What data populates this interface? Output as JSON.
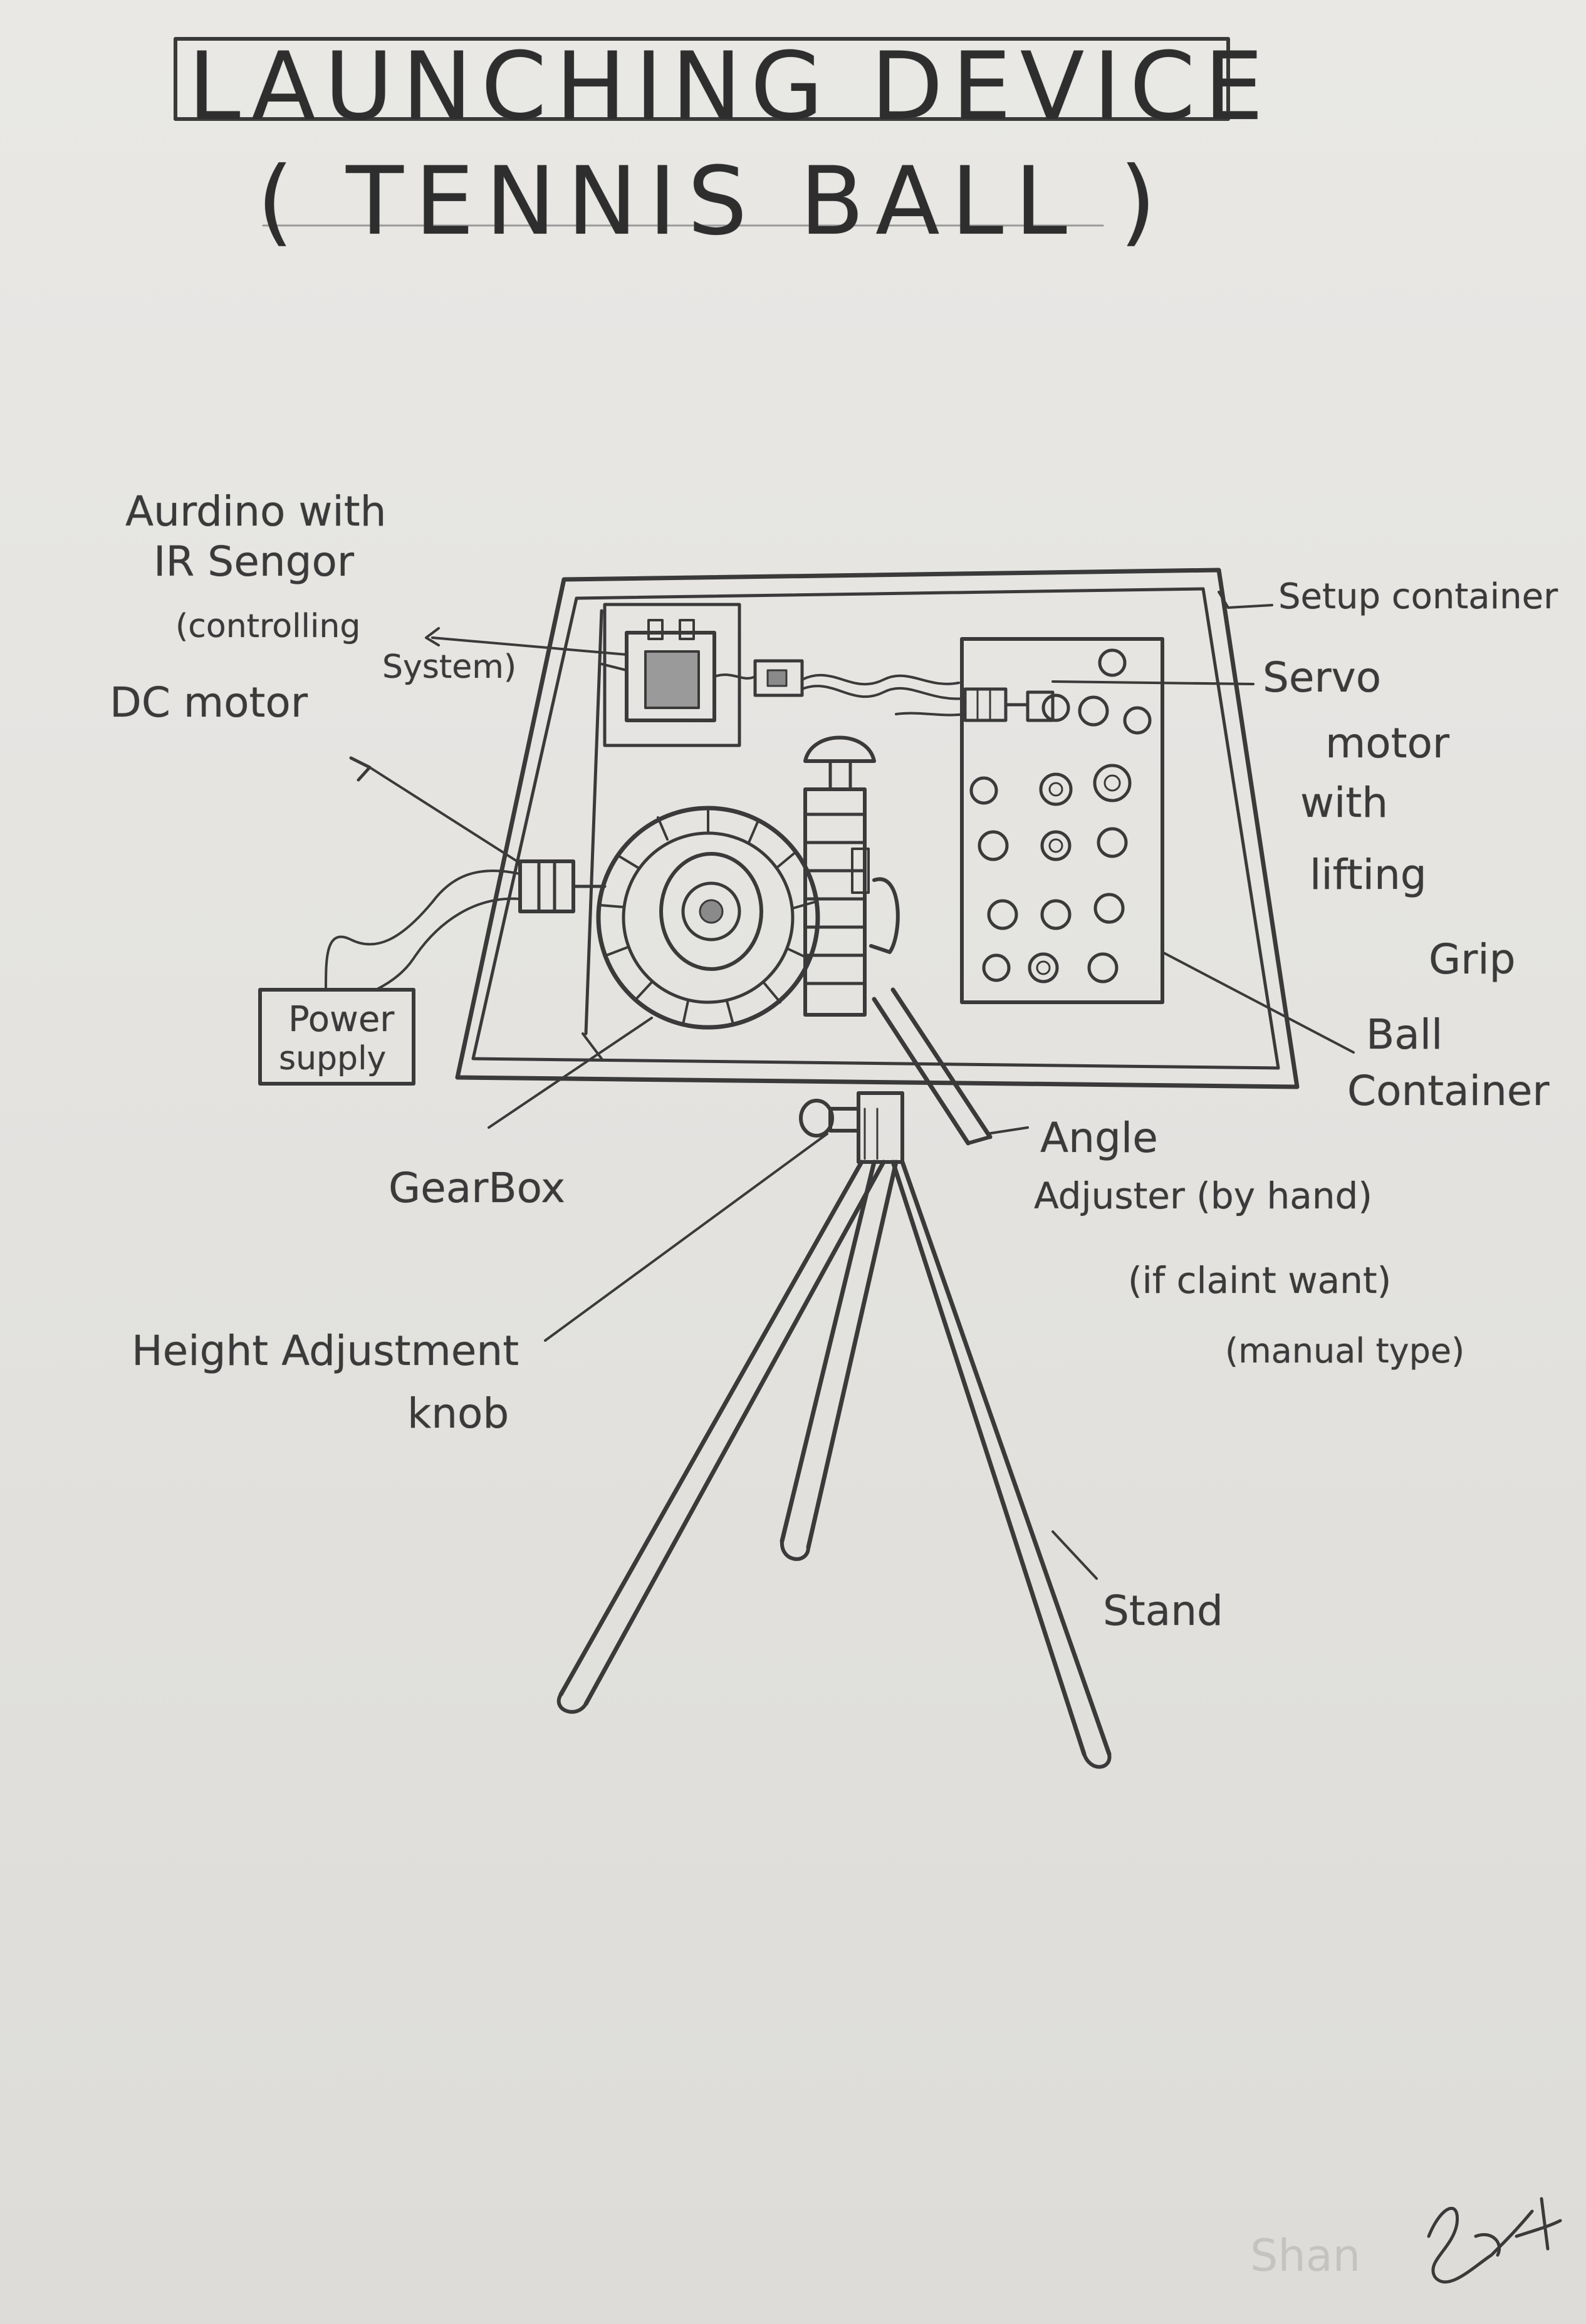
{
  "title": {
    "line1": "LAUNCHING DEVICE",
    "line2": "( TENNIS BALL )"
  },
  "labels": {
    "aurdino_1": "Aurdino with",
    "aurdino_2": "IR Sengor",
    "aurdino_3": "(controlling",
    "aurdino_4": "System)",
    "dc_motor": "DC motor",
    "setup_container": "Setup container",
    "servo_1": "Servo",
    "servo_2": "motor",
    "servo_3": "with",
    "servo_4": "lifting",
    "servo_5": "Grip",
    "power_1": "Power",
    "power_2": "supply",
    "ball_1": "Ball",
    "ball_2": "Container",
    "angle_1": "Angle",
    "angle_2": "Adjuster (by hand)",
    "angle_3": "(if claint want)",
    "angle_4": "(manual type)",
    "gearbox": "GearBox",
    "height_1": "Height Adjustment",
    "height_2": "knob",
    "stand": "Stand",
    "signature": "Shan"
  },
  "colors": {
    "paper": "#e6e5e2",
    "pencil": "#3a3a3a",
    "shade": "#8a8a8a"
  }
}
